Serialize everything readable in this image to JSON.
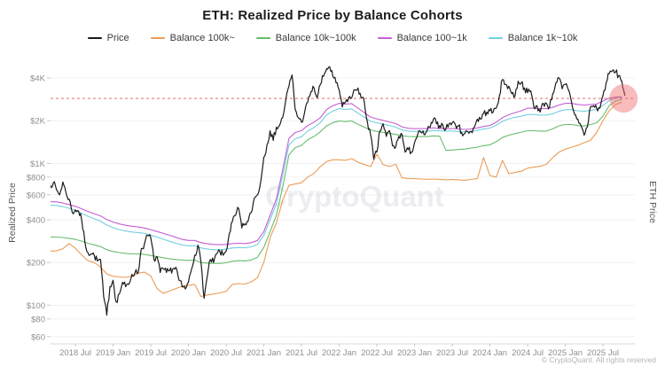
{
  "watermark": {
    "text": "CryptoQuant"
  },
  "copyright": "© CryptoQuant. All rights reserved",
  "axes": {
    "y_label": "Realized Price",
    "right_label": "ETH Price"
  },
  "chart_data": {
    "type": "line",
    "title": "ETH: Realized Price by Balance Cohorts",
    "ylabel": "Realized Price",
    "right_label": "ETH Price",
    "y_scale": "log",
    "ylim": [
      60,
      5000
    ],
    "grid": true,
    "legend_position": "top",
    "x_start_month": "2018-03",
    "x_end_month": "2025-10",
    "y_ticks": [
      {
        "value": 4000,
        "label": "$4K"
      },
      {
        "value": 2000,
        "label": "$2K"
      },
      {
        "value": 1000,
        "label": "$1K"
      },
      {
        "value": 800,
        "label": "$800"
      },
      {
        "value": 600,
        "label": "$600"
      },
      {
        "value": 400,
        "label": "$400"
      },
      {
        "value": 200,
        "label": "$200"
      },
      {
        "value": 100,
        "label": "$100"
      },
      {
        "value": 80,
        "label": "$80"
      },
      {
        "value": 60,
        "label": "$60"
      }
    ],
    "x_ticks": [
      {
        "m": 4,
        "label": "2018 Jul"
      },
      {
        "m": 10,
        "label": "2019 Jan"
      },
      {
        "m": 16,
        "label": "2019 Jul"
      },
      {
        "m": 22,
        "label": "2020 Jan"
      },
      {
        "m": 28,
        "label": "2020 Jul"
      },
      {
        "m": 34,
        "label": "2021 Jan"
      },
      {
        "m": 40,
        "label": "2021 Jul"
      },
      {
        "m": 46,
        "label": "2022 Jan"
      },
      {
        "m": 52,
        "label": "2022 Jul"
      },
      {
        "m": 58,
        "label": "2023 Jan"
      },
      {
        "m": 64,
        "label": "2023 Jul"
      },
      {
        "m": 70,
        "label": "2024 Jan"
      },
      {
        "m": 76,
        "label": "2024 Jul"
      },
      {
        "m": 82,
        "label": "2025 Jan"
      },
      {
        "m": 88,
        "label": "2025 Jul"
      }
    ],
    "reference_line": {
      "value": 2870,
      "color": "#e05c5c",
      "dash": "3 3",
      "width": 1.2,
      "opacity": 0.8
    },
    "highlight": {
      "month_index": 91,
      "value": 2870,
      "radius": 16,
      "color": "#ef6b6b",
      "opacity": 0.45
    },
    "style_colors": {
      "grid": "#f1f1f4",
      "axis": "#d8d8dd",
      "tick_text": "#8f8f94",
      "tick_mark": "#c9c9ce",
      "watermark": "#8b90a8"
    },
    "series": [
      {
        "name": "Price",
        "color": "#1b1b1b",
        "points_per_month": 2,
        "z": 5,
        "jitter": true,
        "width": 1.2,
        "values": [
          705,
          730,
          650,
          600,
          740,
          620,
          560,
          450,
          470,
          460,
          400,
          280,
          235,
          230,
          225,
          205,
          210,
          115,
          85,
          135,
          150,
          105,
          120,
          145,
          135,
          140,
          165,
          170,
          170,
          250,
          270,
          310,
          300,
          210,
          220,
          170,
          180,
          170,
          175,
          180,
          185,
          150,
          135,
          130,
          145,
          180,
          225,
          265,
          200,
          112,
          160,
          210,
          200,
          230,
          240,
          225,
          240,
          320,
          390,
          430,
          480,
          350,
          375,
          390,
          450,
          570,
          600,
          740,
          1100,
          1350,
          1700,
          1450,
          1800,
          1850,
          2100,
          2800,
          3500,
          4200,
          2400,
          2100,
          1950,
          2300,
          2700,
          3200,
          3400,
          2900,
          3600,
          4100,
          4650,
          4800,
          4100,
          3700,
          3300,
          2500,
          2700,
          2900,
          2900,
          3300,
          3400,
          2900,
          2700,
          1950,
          1600,
          1070,
          1200,
          1700,
          1900,
          1550,
          1700,
          1330,
          1300,
          1550,
          1600,
          1200,
          1250,
          1200,
          1400,
          1600,
          1650,
          1600,
          1700,
          1800,
          2050,
          1900,
          1850,
          1870,
          1750,
          1900,
          1930,
          1870,
          1830,
          1650,
          1620,
          1670,
          1680,
          1800,
          2050,
          2050,
          2250,
          2300,
          2350,
          2300,
          2450,
          3000,
          3900,
          3600,
          3500,
          3100,
          3000,
          3800,
          3700,
          3400,
          3150,
          3250,
          2500,
          2550,
          2300,
          2650,
          2650,
          2500,
          3100,
          3700,
          4000,
          3350,
          3600,
          3300,
          2700,
          2200,
          2050,
          1850,
          1580,
          1800,
          2500,
          2550,
          2450,
          2450,
          3000,
          3700,
          4300,
          4500,
          4400,
          4150,
          3800,
          3000
        ]
      },
      {
        "name": "Balance 100k~",
        "color": "#eb9c56",
        "points_per_month": 1,
        "z": 1,
        "jitter": false,
        "width": 1.1,
        "values": [
          240,
          242,
          250,
          272,
          252,
          226,
          206,
          200,
          186,
          166,
          160,
          158,
          157,
          160,
          168,
          171,
          161,
          131,
          121,
          126,
          131,
          136,
          138,
          140,
          115,
          118,
          120,
          122,
          125,
          140,
          142,
          141,
          146,
          156,
          200,
          300,
          380,
          550,
          700,
          715,
          730,
          800,
          850,
          950,
          1030,
          1060,
          1060,
          1050,
          1080,
          1020,
          980,
          950,
          1160,
          980,
          950,
          985,
          790,
          782,
          780,
          776,
          772,
          776,
          771,
          766,
          770,
          766,
          760,
          770,
          782,
          1100,
          820,
          800,
          1050,
          845,
          862,
          880,
          925,
          940,
          952,
          985,
          1100,
          1200,
          1260,
          1300,
          1340,
          1400,
          1450,
          1650,
          2000,
          2350,
          2600,
          2700
        ]
      },
      {
        "name": "Balance 10k~100k",
        "color": "#67bd6c",
        "points_per_month": 1,
        "z": 2,
        "jitter": false,
        "width": 1.1,
        "values": [
          303,
          302,
          300,
          296,
          291,
          283,
          273,
          266,
          259,
          246,
          239,
          235,
          232,
          230,
          230,
          228,
          224,
          220,
          216,
          212,
          210,
          208,
          207,
          208,
          200,
          198,
          197,
          197,
          199,
          204,
          206,
          205,
          208,
          218,
          255,
          330,
          430,
          680,
          1150,
          1290,
          1340,
          1470,
          1550,
          1670,
          1840,
          1940,
          1990,
          1970,
          1990,
          1890,
          1800,
          1720,
          1680,
          1655,
          1625,
          1600,
          1565,
          1548,
          1542,
          1548,
          1545,
          1562,
          1555,
          1235,
          1242,
          1252,
          1262,
          1282,
          1302,
          1332,
          1352,
          1420,
          1520,
          1580,
          1620,
          1660,
          1700,
          1700,
          1690,
          1690,
          1750,
          1840,
          1880,
          1880,
          1850,
          1830,
          1880,
          1930,
          2150,
          2550,
          2750,
          2820
        ]
      },
      {
        "name": "Balance 100~1k",
        "color": "#c45fd4",
        "points_per_month": 1,
        "z": 4,
        "jitter": false,
        "width": 1.1,
        "values": [
          537,
          535,
          525,
          512,
          498,
          478,
          458,
          442,
          426,
          402,
          386,
          374,
          366,
          360,
          356,
          350,
          341,
          331,
          321,
          311,
          301,
          291,
          286,
          286,
          276,
          271,
          268,
          267,
          268,
          272,
          273,
          272,
          276,
          286,
          330,
          430,
          560,
          900,
          1500,
          1650,
          1700,
          1850,
          1950,
          2100,
          2400,
          2550,
          2650,
          2620,
          2640,
          2450,
          2280,
          2120,
          2060,
          2010,
          1960,
          1910,
          1810,
          1770,
          1755,
          1760,
          1755,
          1780,
          1765,
          1755,
          1760,
          1745,
          1735,
          1745,
          1780,
          1820,
          1850,
          1950,
          2100,
          2200,
          2280,
          2350,
          2450,
          2450,
          2430,
          2430,
          2480,
          2580,
          2650,
          2650,
          2600,
          2580,
          2600,
          2620,
          2750,
          2880,
          2930,
          2950
        ]
      },
      {
        "name": "Balance 1k~10k",
        "color": "#74cee0",
        "points_per_month": 1,
        "z": 3,
        "jitter": false,
        "width": 1.1,
        "values": [
          507,
          505,
          496,
          482,
          465,
          444,
          424,
          407,
          391,
          367,
          352,
          341,
          333,
          328,
          325,
          321,
          312,
          302,
          292,
          282,
          273,
          266,
          262,
          263,
          253,
          249,
          246,
          246,
          248,
          253,
          255,
          254,
          258,
          269,
          310,
          400,
          520,
          820,
          1350,
          1490,
          1540,
          1690,
          1790,
          1940,
          2200,
          2340,
          2430,
          2400,
          2420,
          2260,
          2110,
          1980,
          1930,
          1890,
          1850,
          1800,
          1720,
          1690,
          1680,
          1688,
          1685,
          1705,
          1695,
          1685,
          1692,
          1678,
          1668,
          1678,
          1708,
          1745,
          1775,
          1860,
          1980,
          2060,
          2110,
          2150,
          2210,
          2210,
          2190,
          2190,
          2240,
          2330,
          2390,
          2390,
          2350,
          2330,
          2360,
          2400,
          2560,
          2780,
          2880,
          2920
        ]
      }
    ]
  }
}
